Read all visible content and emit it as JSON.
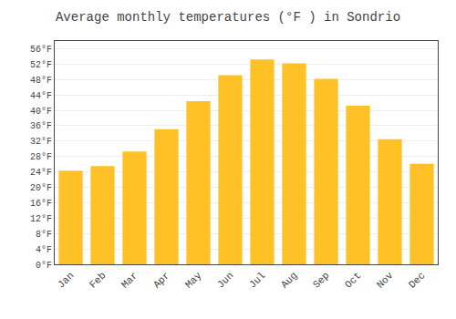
{
  "chart_data": {
    "type": "bar",
    "title": "Average monthly temperatures (°F ) in Sondrio",
    "categories": [
      "Jan",
      "Feb",
      "Mar",
      "Apr",
      "May",
      "Jun",
      "Jul",
      "Aug",
      "Sep",
      "Oct",
      "Nov",
      "Dec"
    ],
    "values": [
      24.3,
      25.5,
      29.3,
      35.1,
      42.4,
      49.1,
      53.2,
      52.2,
      48.2,
      41.2,
      32.5,
      26.1
    ],
    "color": "#FFC125",
    "ylim": [
      0,
      58
    ],
    "yticks": [
      {
        "value": 0,
        "label": "0°F"
      },
      {
        "value": 4,
        "label": "4°F"
      },
      {
        "value": 8,
        "label": "8°F"
      },
      {
        "value": 12,
        "label": "12°F"
      },
      {
        "value": 16,
        "label": "16°F"
      },
      {
        "value": 20,
        "label": "20°F"
      },
      {
        "value": 24,
        "label": "24°F"
      },
      {
        "value": 28,
        "label": "28°F"
      },
      {
        "value": 32,
        "label": "32°F"
      },
      {
        "value": 36,
        "label": "36°F"
      },
      {
        "value": 40,
        "label": "40°F"
      },
      {
        "value": 44,
        "label": "44°F"
      },
      {
        "value": 48,
        "label": "48°F"
      },
      {
        "value": 52,
        "label": "52°F"
      },
      {
        "value": 56,
        "label": "56°F"
      }
    ],
    "grid": true
  }
}
